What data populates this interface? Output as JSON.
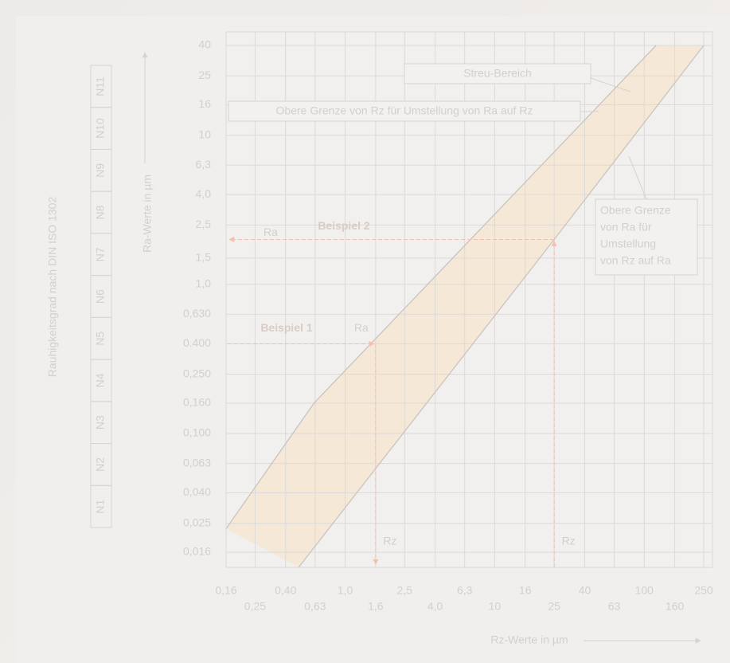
{
  "chart_data": {
    "type": "line",
    "x_label": "Rz-Werte in µm",
    "y_label": "Ra-Werte in µm",
    "log_scale": true,
    "grid": true,
    "xlim": [
      0.16,
      250
    ],
    "ylim": [
      0.016,
      40
    ],
    "xticks": [
      {
        "value": 0.16,
        "label": "0,16"
      },
      {
        "value": 0.25,
        "label": "0,25"
      },
      {
        "value": 0.4,
        "label": "0,40"
      },
      {
        "value": 0.63,
        "label": "0,63"
      },
      {
        "value": 1,
        "label": "1,0"
      },
      {
        "value": 1.6,
        "label": "1,6"
      },
      {
        "value": 2.5,
        "label": "2,5"
      },
      {
        "value": 4,
        "label": "4,0"
      },
      {
        "value": 6.3,
        "label": "6,3"
      },
      10,
      16,
      25,
      40,
      63,
      100,
      160,
      250
    ],
    "yticks": [
      40,
      25,
      16,
      10,
      {
        "value": 6.3,
        "label": "6,3"
      },
      {
        "value": 4,
        "label": "4,0"
      },
      {
        "value": 2.5,
        "label": "2,5"
      },
      {
        "value": 1.5,
        "label": "1,5"
      },
      {
        "value": 1,
        "label": "1,0"
      },
      {
        "value": 0.63,
        "label": "0,630"
      },
      {
        "value": 0.4,
        "label": "0.400"
      },
      {
        "value": 0.25,
        "label": "0,250"
      },
      {
        "value": 0.16,
        "label": "0,160"
      },
      {
        "value": 0.1,
        "label": "0,100"
      },
      {
        "value": 0.063,
        "label": "0,063"
      },
      {
        "value": 0.04,
        "label": "0,040"
      },
      {
        "value": 0.025,
        "label": "0,025"
      },
      {
        "value": 0.016,
        "label": "0,016"
      }
    ],
    "band_color": "#f6e8d6",
    "series": [
      {
        "color": "#c8c4c1",
        "x": [
          0.16,
          0.62,
          120
        ],
        "values": [
          0.023,
          0.16,
          40
        ]
      },
      {
        "color": "#c8c4c1",
        "x": [
          0.49,
          25,
          250
        ],
        "values": [
          0.0127,
          2,
          40
        ]
      }
    ],
    "grade_axis": {
      "label": "Rauhigkeitsgrad nach DIN ISO 1302",
      "grades": [
        "N1",
        "N2",
        "N3",
        "N4",
        "N5",
        "N6",
        "N7",
        "N8",
        "N9",
        "N10",
        "N11"
      ]
    },
    "annotations": [
      {
        "text": "Streu-Bereich"
      },
      {
        "text": "Obere Grenze von Rz für Umstellung von Ra auf Rz"
      },
      {
        "lines": [
          "Obere Grenze",
          "von Ra für",
          "Umstellung",
          "von Rz auf Ra"
        ]
      }
    ],
    "examples": [
      {
        "label": "Beispiel 1",
        "rz": 1.6,
        "ra": 0.4,
        "ra_text": "Ra",
        "rz_text": "Rz"
      },
      {
        "label": "Beispiel 2",
        "rz": 25,
        "ra": 2,
        "ra_text": "Ra",
        "rz_text": "Rz"
      }
    ],
    "example_color": "#f3bfae"
  }
}
